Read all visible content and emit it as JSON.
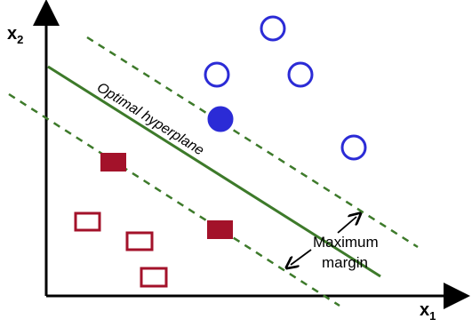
{
  "diagram": {
    "axis_labels": {
      "x_main": "x",
      "x_sub": "1",
      "y_main": "x",
      "y_sub": "2"
    },
    "hyperplane_label": "Optimal hyperplane",
    "margin_label_line1": "Maximum",
    "margin_label_line2": "margin",
    "colors": {
      "circle_class": "#2b2bd6",
      "square_class": "#a3122a",
      "hyperplane": "#3d7a2a",
      "axis": "#000000"
    },
    "icons": {
      "margin_arrows": "double-arrow-icon"
    }
  }
}
